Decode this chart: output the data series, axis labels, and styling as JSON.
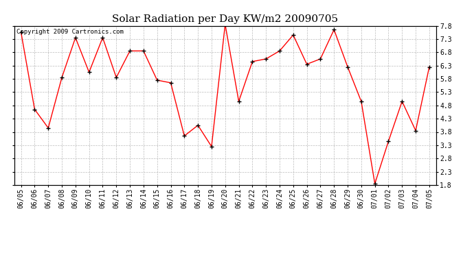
{
  "title": "Solar Radiation per Day KW/m2 20090705",
  "copyright_text": "Copyright 2009 Cartronics.com",
  "dates": [
    "06/05",
    "06/06",
    "06/07",
    "06/08",
    "06/09",
    "06/10",
    "06/11",
    "06/12",
    "06/13",
    "06/14",
    "06/15",
    "06/16",
    "06/17",
    "06/18",
    "06/19",
    "06/20",
    "06/21",
    "06/22",
    "06/23",
    "06/24",
    "06/25",
    "06/26",
    "06/27",
    "06/28",
    "06/29",
    "06/30",
    "07/01",
    "07/02",
    "07/03",
    "07/04",
    "07/05"
  ],
  "values": [
    7.55,
    4.65,
    3.95,
    5.85,
    7.35,
    6.05,
    7.35,
    5.85,
    6.85,
    6.85,
    5.75,
    5.65,
    3.65,
    4.05,
    3.25,
    7.85,
    4.95,
    6.45,
    6.55,
    6.85,
    7.45,
    6.35,
    6.55,
    7.65,
    6.25,
    4.95,
    1.85,
    3.45,
    4.95,
    3.85,
    6.25
  ],
  "line_color": "#ff0000",
  "marker_color": "#000000",
  "background_color": "#ffffff",
  "plot_bg_color": "#ffffff",
  "grid_color": "#aaaaaa",
  "ylim": [
    1.8,
    7.8
  ],
  "yticks": [
    1.8,
    2.3,
    2.8,
    3.3,
    3.8,
    4.3,
    4.8,
    5.3,
    5.8,
    6.3,
    6.8,
    7.3,
    7.8
  ],
  "title_fontsize": 11,
  "tick_fontsize": 7,
  "copyright_fontsize": 6.5
}
